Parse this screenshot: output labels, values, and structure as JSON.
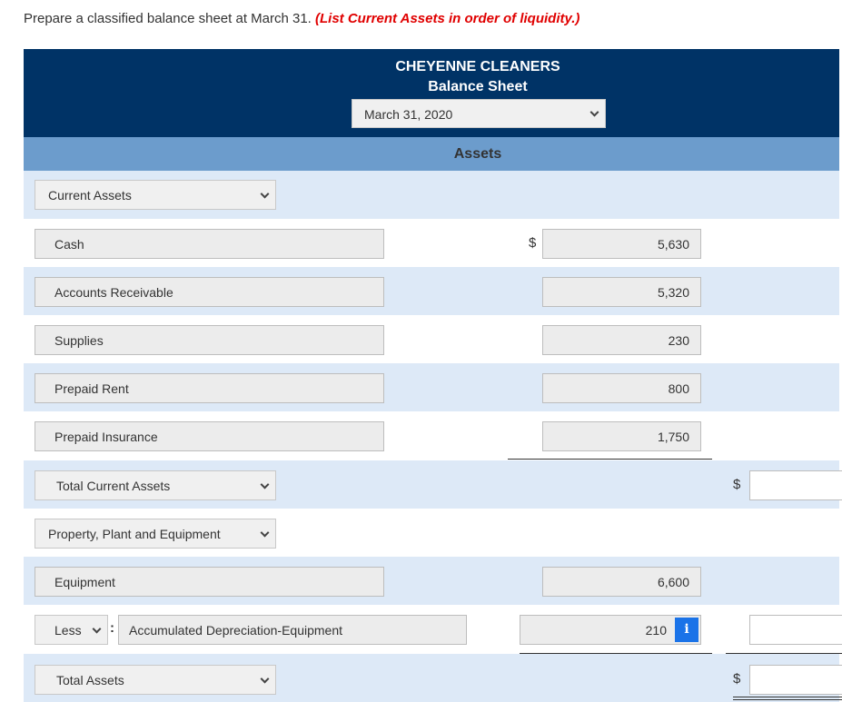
{
  "instruction": {
    "text": "Prepare a classified balance sheet at March 31. ",
    "emphasis": "(List Current Assets in order of liquidity.)"
  },
  "header": {
    "company": "CHEYENNE CLEANERS",
    "title": "Balance Sheet",
    "date_selected": "March 31, 2020"
  },
  "section": {
    "label": "Assets"
  },
  "rows": {
    "current_assets": {
      "label": "Current Assets"
    },
    "cash": {
      "label": "Cash",
      "currency": "$",
      "amount": "5,630"
    },
    "accounts_receivable": {
      "label": "Accounts Receivable",
      "amount": "5,320"
    },
    "supplies": {
      "label": "Supplies",
      "amount": "230"
    },
    "prepaid_rent": {
      "label": "Prepaid Rent",
      "amount": "800"
    },
    "prepaid_insurance": {
      "label": "Prepaid Insurance",
      "amount": "1,750"
    },
    "total_current_assets": {
      "label": "Total Current Assets",
      "currency": "$",
      "total": ""
    },
    "ppe": {
      "label": "Property, Plant and Equipment"
    },
    "equipment": {
      "label": "Equipment",
      "amount": "6,600"
    },
    "accum_dep": {
      "prefix": "Less",
      "colon": ":",
      "label": "Accumulated Depreciation-Equipment",
      "amount": "210",
      "info": "i",
      "total": ""
    },
    "total_assets": {
      "label": "Total Assets",
      "currency": "$",
      "total": ""
    }
  },
  "colors": {
    "header_bg": "#003366",
    "section_bg": "#6c9ccc",
    "row_alt_bg": "#dde9f7",
    "emphasis": "#e00000",
    "info_button": "#1a73e8"
  }
}
